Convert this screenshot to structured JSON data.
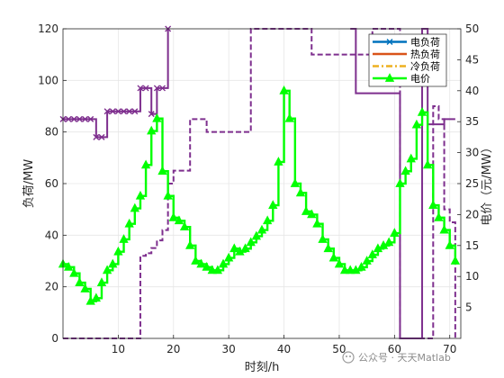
{
  "chart_data": {
    "type": "line",
    "xlabel": "时刻/h",
    "ylabel_left": "负荷/MW",
    "ylabel_right": "电价（元/MW）",
    "xlim": [
      0,
      72
    ],
    "ylim_left": [
      0,
      120
    ],
    "ylim_right": [
      0,
      50
    ],
    "x_ticks": [
      10,
      20,
      30,
      40,
      50,
      60,
      70
    ],
    "y_ticks_left": [
      0,
      20,
      40,
      60,
      80,
      100,
      120
    ],
    "y_ticks_right": [
      5,
      10,
      15,
      20,
      25,
      30,
      35,
      40,
      45,
      50
    ],
    "grid": true,
    "legend_position": "top-right",
    "series": [
      {
        "name": "电负荷",
        "axis": "left",
        "color": "#0072BD",
        "style": "solid",
        "marker": "x",
        "x": [],
        "y": []
      },
      {
        "name": "热负荷",
        "axis": "left",
        "color": "#D95319",
        "style": "solid",
        "marker": "none",
        "x": [],
        "y": []
      },
      {
        "name": "冷负荷",
        "axis": "left",
        "color": "#EDB120",
        "style": "dashdot",
        "marker": "none",
        "x": [],
        "y": []
      },
      {
        "name": "电价",
        "axis": "right",
        "color": "#00FF00",
        "style": "solid",
        "marker": "triangle",
        "x": [
          0,
          1,
          2,
          3,
          4,
          5,
          6,
          7,
          8,
          9,
          10,
          11,
          12,
          13,
          14,
          15,
          16,
          17,
          18,
          19,
          20,
          21,
          22,
          23,
          24,
          25,
          26,
          27,
          28,
          29,
          30,
          31,
          32,
          33,
          34,
          35,
          36,
          37,
          38,
          39,
          40,
          41,
          42,
          43,
          44,
          45,
          46,
          47,
          48,
          49,
          50,
          51,
          52,
          53,
          54,
          55,
          56,
          57,
          58,
          59,
          60,
          61,
          62,
          63,
          64,
          65,
          66,
          67,
          68,
          69,
          70,
          71
        ],
        "y": [
          12,
          11.5,
          10.5,
          9,
          8,
          6,
          6.5,
          9,
          11,
          12,
          14,
          16,
          18.5,
          21,
          23,
          28,
          33.5,
          35.5,
          27,
          23,
          19.5,
          19,
          18,
          15,
          12.5,
          12,
          11.5,
          11,
          11,
          12,
          13,
          14.5,
          14,
          14.5,
          15.5,
          16.5,
          17.5,
          19,
          21.5,
          28.5,
          40,
          35.5,
          25,
          23.5,
          20.5,
          20,
          18.5,
          16,
          14.5,
          13,
          12,
          11,
          11,
          11,
          11.5,
          12.5,
          13.5,
          14.5,
          15,
          15.5,
          17,
          25,
          27,
          29,
          34.5,
          36.5,
          28,
          21.5,
          19.5,
          17.5,
          15,
          12.5
        ]
      }
    ],
    "unlabeled_traces": [
      {
        "color": "#7E2F8E",
        "style": "solid",
        "marker": "x",
        "axis": "left",
        "x": [
          0,
          1,
          2,
          3,
          4,
          5,
          6,
          7,
          8,
          9,
          10,
          11,
          12,
          13,
          14,
          15,
          16,
          17,
          18,
          19
        ],
        "y": [
          85,
          85,
          85,
          85,
          85,
          85,
          78,
          78,
          88,
          88,
          88,
          88,
          88,
          88,
          97,
          97,
          87,
          97,
          97,
          120
        ]
      },
      {
        "color": "#7E2F8E",
        "style": "dash",
        "marker": "none",
        "axis": "left",
        "x": [
          0,
          14,
          15,
          16,
          17,
          18,
          19,
          20,
          21,
          22,
          23,
          24,
          25,
          26,
          27,
          28,
          29,
          30,
          31,
          32,
          33,
          34,
          35,
          36,
          37,
          38,
          39,
          40,
          41,
          42,
          43,
          44,
          45,
          46,
          47,
          48,
          49,
          50,
          51,
          52,
          53,
          54,
          55,
          56,
          57,
          58,
          59,
          60,
          61,
          62,
          63,
          64,
          65,
          66,
          67,
          68,
          69,
          70,
          71
        ],
        "y": [
          0,
          32,
          33,
          35,
          38,
          42,
          60,
          65,
          65,
          65,
          85,
          85,
          85,
          80,
          80,
          80,
          80,
          80,
          80,
          80,
          80,
          120,
          120,
          120,
          120,
          120,
          120,
          120,
          120,
          120,
          120,
          120,
          110,
          110,
          110,
          110,
          110,
          110,
          110,
          110,
          110,
          110,
          110,
          120,
          120,
          120,
          120,
          120,
          0,
          0,
          0,
          0,
          0,
          0,
          90,
          85,
          50,
          45,
          0
        ]
      },
      {
        "color": "#7E2F8E",
        "style": "solid",
        "marker": "none",
        "axis": "left",
        "x": [
          52,
          53,
          54,
          55,
          56,
          57,
          58,
          59,
          60,
          61,
          62,
          63,
          64,
          65,
          66,
          67,
          68,
          69,
          70,
          71
        ],
        "y": [
          120,
          95,
          95,
          95,
          95,
          95,
          95,
          95,
          95,
          0,
          0,
          0,
          0,
          120,
          83,
          83,
          83,
          85,
          85,
          85
        ]
      }
    ],
    "watermark": "公众号 · 天天Matlab"
  }
}
